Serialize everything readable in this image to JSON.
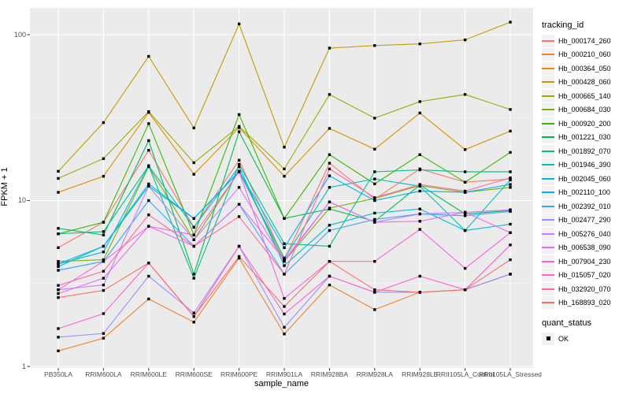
{
  "panel": {
    "bg": "#ebebeb",
    "grid_major": "#ffffff",
    "grid_minor": "#f7f7f7",
    "tick_color": "#333333",
    "point_color": "#000000"
  },
  "chart_data": {
    "type": "line",
    "title": "",
    "xlabel": "sample_name",
    "ylabel": "FPKM + 1",
    "yscale": "log10",
    "ylim": [
      1,
      145
    ],
    "grid": true,
    "legend_position": "right",
    "legend_title": "tracking_id",
    "marker": "filled-black-square",
    "yticks": [
      {
        "label": "1",
        "value": 1
      },
      {
        "label": "10",
        "value": 10
      },
      {
        "label": "100",
        "value": 100
      }
    ],
    "y_minor": [
      3.162,
      31.62
    ],
    "categories": [
      "PB350LA",
      "RRIM600LA",
      "RRIM600LE",
      "RRIM600SE",
      "RRIM600PE",
      "RRIM901LA",
      "RRIM928BA",
      "RRIM928LA",
      "RRIM928LE",
      "RRII105LA_Control",
      "RRII105LA_Stressed"
    ],
    "series": [
      {
        "name": "Hb_000174_260",
        "color": "#F8766D",
        "values": [
          5.2,
          7.4,
          20.1,
          6.9,
          17.5,
          4.4,
          16.8,
          10.2,
          15.5,
          12.9,
          13.5
        ]
      },
      {
        "name": "Hb_000210_060",
        "color": "#EA8331",
        "values": [
          1.24,
          1.48,
          2.55,
          1.85,
          4.5,
          1.57,
          3.1,
          2.2,
          2.8,
          2.9,
          3.6
        ]
      },
      {
        "name": "Hb_000364_050",
        "color": "#D89000",
        "values": [
          11.2,
          14.0,
          34.0,
          14.4,
          27.5,
          14.0,
          27.2,
          20.4,
          33.7,
          20.3,
          26.2
        ]
      },
      {
        "name": "Hb_000428_060",
        "color": "#C09B00",
        "values": [
          15.0,
          29.5,
          74,
          27.4,
          116,
          21.0,
          83,
          86,
          88,
          93,
          119
        ]
      },
      {
        "name": "Hb_000665_140",
        "color": "#A3A500",
        "values": [
          13.6,
          17.9,
          34.4,
          16.9,
          28,
          15.5,
          43.6,
          31.4,
          39.5,
          43.6,
          35.4
        ]
      },
      {
        "name": "Hb_000684_030",
        "color": "#7CAE00",
        "values": [
          4.3,
          4.4,
          16.0,
          5.8,
          15.0,
          4.3,
          9.0,
          10.3,
          12.3,
          11.2,
          12.0
        ]
      },
      {
        "name": "Hb_000920_200",
        "color": "#39B600",
        "values": [
          6.3,
          7.4,
          29.1,
          6.2,
          33,
          7.8,
          18.9,
          12.6,
          18.9,
          12.9,
          19.5
        ]
      },
      {
        "name": "Hb_001221_030",
        "color": "#00BB4E",
        "values": [
          6.8,
          6.2,
          23,
          3.6,
          26,
          7.8,
          8.9,
          7.5,
          12.4,
          8.3,
          8.7
        ]
      },
      {
        "name": "Hb_001892_070",
        "color": "#00C087",
        "values": [
          6.3,
          6.5,
          16.2,
          3.4,
          16.5,
          5.5,
          5.3,
          14.9,
          15.3,
          14.9,
          14.9
        ]
      },
      {
        "name": "Hb_001946_390",
        "color": "#00C0B2",
        "values": [
          4.0,
          5.3,
          12.2,
          7.8,
          14.9,
          4.5,
          12.0,
          13.5,
          12.2,
          6.6,
          13.3
        ]
      },
      {
        "name": "Hb_002045_060",
        "color": "#00BCD8",
        "values": [
          4.15,
          4.9,
          16.2,
          6.9,
          16.0,
          4.05,
          7.1,
          8.4,
          8.9,
          6.6,
          7.2
        ]
      },
      {
        "name": "Hb_002110_100",
        "color": "#00B0F6",
        "values": [
          4.15,
          5.3,
          12.6,
          7.8,
          15.0,
          5.2,
          14.1,
          10.0,
          11.4,
          11.2,
          12.5
        ]
      },
      {
        "name": "Hb_002392_010",
        "color": "#35A2FF",
        "values": [
          3.8,
          4.3,
          10.0,
          5.3,
          9.5,
          3.6,
          6.6,
          7.7,
          8.3,
          8.1,
          8.6
        ]
      },
      {
        "name": "Hb_002477_290",
        "color": "#9590FF",
        "values": [
          1.5,
          1.58,
          3.5,
          2.1,
          5.3,
          1.72,
          3.5,
          2.8,
          2.8,
          2.9,
          3.6
        ]
      },
      {
        "name": "Hb_005276_040",
        "color": "#C77CFF",
        "values": [
          2.9,
          3.1,
          12.2,
          5.8,
          12.0,
          4.3,
          9.8,
          7.4,
          8.3,
          8.5,
          8.8
        ]
      },
      {
        "name": "Hb_006538_090",
        "color": "#E76BF3",
        "values": [
          2.75,
          3.4,
          7.0,
          5.3,
          9.5,
          4.4,
          9.8,
          7.4,
          7.5,
          8.5,
          6.4
        ]
      },
      {
        "name": "Hb_007904_230",
        "color": "#FA62DB",
        "values": [
          2.9,
          4.3,
          7.0,
          6.2,
          14.9,
          2.57,
          4.3,
          4.3,
          6.7,
          3.9,
          6.4
        ]
      },
      {
        "name": "Hb_015057_020",
        "color": "#FF61C9",
        "values": [
          1.69,
          2.08,
          4.2,
          2.0,
          5.3,
          2.07,
          3.5,
          2.8,
          3.5,
          2.9,
          5.4
        ]
      },
      {
        "name": "Hb_032920_070",
        "color": "#FF68A1",
        "values": [
          3.08,
          3.75,
          8.2,
          5.3,
          8.0,
          3.6,
          15.5,
          10.4,
          12.5,
          11.4,
          13.7
        ]
      },
      {
        "name": "Hb_168893_020",
        "color": "#FF6C67",
        "values": [
          2.6,
          2.87,
          4.2,
          2.0,
          4.6,
          2.3,
          4.3,
          2.9,
          2.8,
          2.9,
          4.4
        ]
      }
    ],
    "quant_legend": {
      "title": "quant_status",
      "items": [
        {
          "label": "OK",
          "marker": "black-square"
        }
      ]
    }
  }
}
